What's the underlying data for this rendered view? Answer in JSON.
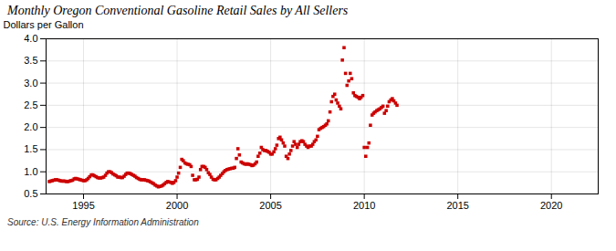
{
  "chart_data": {
    "type": "scatter",
    "title": "Monthly Oregon Conventional Gasoline Retail Sales by All Sellers",
    "ylabel": "Dollars per Gallon",
    "caption": "Source: U.S. Energy Information Administration",
    "color": "#cc0000",
    "marker": "square",
    "grid": true,
    "xlim": [
      1993.0,
      2022.5
    ],
    "xticks": [
      1995,
      2000,
      2005,
      2010,
      2015,
      2020
    ],
    "ylim": [
      0.5,
      4.0
    ],
    "yticks": [
      0.5,
      {
        "value": 1.0,
        "label": "1.0"
      },
      1.5,
      {
        "value": 2.0,
        "label": "2.0"
      },
      2.5,
      {
        "value": 3.0,
        "label": "3.0"
      },
      3.5,
      {
        "value": 4.0,
        "label": "4.0"
      }
    ],
    "x": [
      1993.17,
      1993.25,
      1993.33,
      1993.42,
      1993.5,
      1993.58,
      1993.67,
      1993.75,
      1993.83,
      1993.92,
      1994.0,
      1994.08,
      1994.17,
      1994.25,
      1994.33,
      1994.42,
      1994.5,
      1994.58,
      1994.67,
      1994.75,
      1994.83,
      1994.92,
      1995.0,
      1995.08,
      1995.17,
      1995.25,
      1995.33,
      1995.42,
      1995.5,
      1995.58,
      1995.67,
      1995.75,
      1995.83,
      1995.92,
      1996.0,
      1996.08,
      1996.17,
      1996.25,
      1996.33,
      1996.42,
      1996.5,
      1996.58,
      1996.67,
      1996.75,
      1996.83,
      1996.92,
      1997.0,
      1997.08,
      1997.17,
      1997.25,
      1997.33,
      1997.42,
      1997.5,
      1997.58,
      1997.67,
      1997.75,
      1997.83,
      1997.92,
      1998.0,
      1998.08,
      1998.17,
      1998.25,
      1998.33,
      1998.42,
      1998.5,
      1998.58,
      1998.67,
      1998.75,
      1998.83,
      1998.92,
      1999.0,
      1999.08,
      1999.17,
      1999.25,
      1999.33,
      1999.42,
      1999.5,
      1999.58,
      1999.67,
      1999.75,
      1999.83,
      1999.92,
      2000.0,
      2000.08,
      2000.17,
      2000.25,
      2000.33,
      2000.42,
      2000.5,
      2000.58,
      2000.67,
      2000.75,
      2000.83,
      2000.92,
      2001.0,
      2001.08,
      2001.17,
      2001.25,
      2001.33,
      2001.42,
      2001.5,
      2001.58,
      2001.67,
      2001.75,
      2001.83,
      2001.92,
      2002.0,
      2002.08,
      2002.17,
      2002.25,
      2002.33,
      2002.42,
      2002.5,
      2002.58,
      2002.67,
      2002.75,
      2002.83,
      2002.92,
      2003.0,
      2003.08,
      2003.17,
      2003.25,
      2003.33,
      2003.42,
      2003.5,
      2003.58,
      2003.67,
      2003.75,
      2003.83,
      2003.92,
      2004.0,
      2004.08,
      2004.17,
      2004.25,
      2004.33,
      2004.42,
      2004.5,
      2004.58,
      2004.67,
      2004.75,
      2004.83,
      2004.92,
      2005.0,
      2005.08,
      2005.17,
      2005.25,
      2005.33,
      2005.42,
      2005.5,
      2005.58,
      2005.67,
      2005.75,
      2005.83,
      2005.92,
      2006.0,
      2006.08,
      2006.17,
      2006.25,
      2006.33,
      2006.42,
      2006.5,
      2006.58,
      2006.67,
      2006.75,
      2006.83,
      2006.92,
      2007.0,
      2007.08,
      2007.17,
      2007.25,
      2007.33,
      2007.42,
      2007.5,
      2007.58,
      2007.67,
      2007.75,
      2007.83,
      2007.92,
      2008.0,
      2008.08,
      2008.17,
      2008.25,
      2008.33,
      2008.42,
      2008.5,
      2008.58,
      2008.67,
      2008.75,
      2008.83,
      2008.92,
      2009.0,
      2009.08,
      2009.17,
      2009.25,
      2009.33,
      2009.42,
      2009.5,
      2009.58,
      2009.67,
      2009.75,
      2009.83,
      2009.92,
      2010.0,
      2010.08,
      2010.17,
      2010.25,
      2010.33,
      2010.42,
      2010.5,
      2010.58,
      2010.67,
      2010.75,
      2010.83,
      2010.92,
      2011.0,
      2011.08,
      2011.17,
      2011.25,
      2011.33,
      2011.42,
      2011.5,
      2011.58,
      2011.67,
      2011.75
    ],
    "values": [
      0.78,
      0.79,
      0.8,
      0.81,
      0.82,
      0.82,
      0.81,
      0.8,
      0.79,
      0.79,
      0.79,
      0.78,
      0.78,
      0.79,
      0.8,
      0.81,
      0.84,
      0.85,
      0.84,
      0.83,
      0.82,
      0.81,
      0.8,
      0.8,
      0.82,
      0.85,
      0.89,
      0.93,
      0.93,
      0.91,
      0.89,
      0.87,
      0.86,
      0.86,
      0.87,
      0.88,
      0.92,
      0.97,
      1.0,
      1.0,
      0.98,
      0.95,
      0.93,
      0.91,
      0.88,
      0.88,
      0.87,
      0.87,
      0.9,
      0.94,
      0.97,
      0.97,
      0.96,
      0.94,
      0.92,
      0.9,
      0.87,
      0.85,
      0.83,
      0.82,
      0.82,
      0.82,
      0.81,
      0.8,
      0.79,
      0.77,
      0.75,
      0.73,
      0.7,
      0.68,
      0.66,
      0.67,
      0.68,
      0.7,
      0.73,
      0.76,
      0.78,
      0.77,
      0.76,
      0.74,
      0.76,
      0.8,
      0.88,
      0.97,
      1.1,
      1.28,
      1.25,
      1.2,
      1.18,
      1.17,
      1.16,
      1.12,
      0.92,
      0.82,
      0.82,
      0.83,
      0.88,
      1.05,
      1.12,
      1.12,
      1.1,
      1.05,
      0.98,
      0.94,
      0.88,
      0.83,
      0.82,
      0.82,
      0.85,
      0.88,
      0.92,
      0.96,
      1.0,
      1.03,
      1.05,
      1.06,
      1.07,
      1.08,
      1.08,
      1.1,
      1.3,
      1.52,
      1.38,
      1.22,
      1.2,
      1.18,
      1.17,
      1.18,
      1.17,
      1.16,
      1.14,
      1.15,
      1.18,
      1.22,
      1.35,
      1.42,
      1.55,
      1.5,
      1.48,
      1.48,
      1.46,
      1.44,
      1.4,
      1.4,
      1.45,
      1.52,
      1.6,
      1.75,
      1.78,
      1.72,
      1.65,
      1.58,
      1.35,
      1.3,
      1.4,
      1.48,
      1.58,
      1.68,
      1.62,
      1.55,
      1.62,
      1.68,
      1.7,
      1.68,
      1.62,
      1.58,
      1.55,
      1.58,
      1.58,
      1.62,
      1.68,
      1.72,
      1.8,
      1.95,
      1.98,
      2.0,
      2.02,
      2.05,
      2.08,
      2.15,
      2.35,
      2.58,
      2.7,
      2.75,
      2.62,
      2.55,
      2.48,
      2.42,
      3.52,
      3.8,
      3.22,
      2.95,
      3.05,
      3.22,
      3.1,
      2.78,
      2.72,
      2.7,
      2.68,
      2.65,
      2.68,
      2.72,
      1.55,
      1.35,
      1.55,
      1.65,
      2.05,
      2.28,
      2.32,
      2.35,
      2.38,
      2.4,
      2.42,
      2.45,
      2.48,
      2.32,
      2.38,
      2.48,
      2.58,
      2.62,
      2.65,
      2.6,
      2.55,
      2.5
    ]
  }
}
